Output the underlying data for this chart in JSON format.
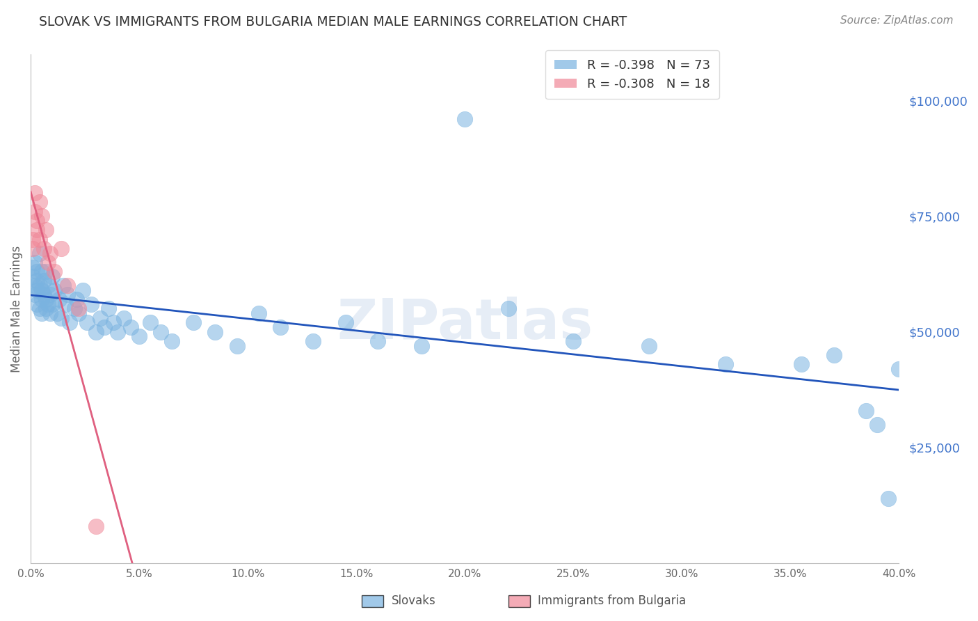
{
  "title": "SLOVAK VS IMMIGRANTS FROM BULGARIA MEDIAN MALE EARNINGS CORRELATION CHART",
  "source": "Source: ZipAtlas.com",
  "ylabel": "Median Male Earnings",
  "right_yticks": [
    0,
    25000,
    50000,
    75000,
    100000
  ],
  "right_yticklabels": [
    "",
    "$25,000",
    "$50,000",
    "$75,000",
    "$100,000"
  ],
  "xlim": [
    0.0,
    0.4
  ],
  "ylim": [
    0,
    110000
  ],
  "watermark": "ZIPatlas",
  "slovak_color": "#7ab3e0",
  "bulgarian_color": "#f08898",
  "slovak_line_color": "#2255bb",
  "bulgarian_line_color": "#e06080",
  "background_color": "#ffffff",
  "grid_color": "#cccccc",
  "title_color": "#333333",
  "right_axis_color": "#4477cc",
  "source_color": "#888888",
  "slovak_R": -0.398,
  "slovak_N": 73,
  "bulgarian_R": -0.308,
  "bulgarian_N": 18,
  "slovak_x": [
    0.001,
    0.001,
    0.002,
    0.002,
    0.002,
    0.003,
    0.003,
    0.003,
    0.003,
    0.004,
    0.004,
    0.004,
    0.005,
    0.005,
    0.005,
    0.005,
    0.006,
    0.006,
    0.007,
    0.007,
    0.007,
    0.008,
    0.008,
    0.009,
    0.009,
    0.01,
    0.01,
    0.011,
    0.012,
    0.013,
    0.014,
    0.015,
    0.016,
    0.017,
    0.018,
    0.02,
    0.021,
    0.022,
    0.024,
    0.026,
    0.028,
    0.03,
    0.032,
    0.034,
    0.036,
    0.038,
    0.04,
    0.043,
    0.046,
    0.05,
    0.055,
    0.06,
    0.065,
    0.075,
    0.085,
    0.095,
    0.105,
    0.115,
    0.13,
    0.145,
    0.16,
    0.18,
    0.2,
    0.22,
    0.25,
    0.285,
    0.32,
    0.355,
    0.37,
    0.385,
    0.39,
    0.395,
    0.4
  ],
  "slovak_y": [
    62000,
    64000,
    60000,
    58000,
    65000,
    63000,
    59000,
    61000,
    56000,
    67000,
    55000,
    60000,
    63000,
    57000,
    59000,
    54000,
    61000,
    58000,
    55000,
    63000,
    57000,
    60000,
    56000,
    58000,
    54000,
    62000,
    56000,
    59000,
    54000,
    57000,
    53000,
    60000,
    56000,
    58000,
    52000,
    55000,
    57000,
    54000,
    59000,
    52000,
    56000,
    50000,
    53000,
    51000,
    55000,
    52000,
    50000,
    53000,
    51000,
    49000,
    52000,
    50000,
    48000,
    52000,
    50000,
    47000,
    54000,
    51000,
    48000,
    52000,
    48000,
    47000,
    96000,
    55000,
    48000,
    47000,
    43000,
    43000,
    45000,
    33000,
    30000,
    14000,
    42000
  ],
  "bulgarian_x": [
    0.001,
    0.001,
    0.002,
    0.002,
    0.003,
    0.003,
    0.004,
    0.004,
    0.005,
    0.006,
    0.007,
    0.008,
    0.009,
    0.011,
    0.014,
    0.017,
    0.022,
    0.03
  ],
  "bulgarian_y": [
    70000,
    68000,
    80000,
    76000,
    74000,
    72000,
    78000,
    70000,
    75000,
    68000,
    72000,
    65000,
    67000,
    63000,
    68000,
    60000,
    55000,
    8000
  ]
}
